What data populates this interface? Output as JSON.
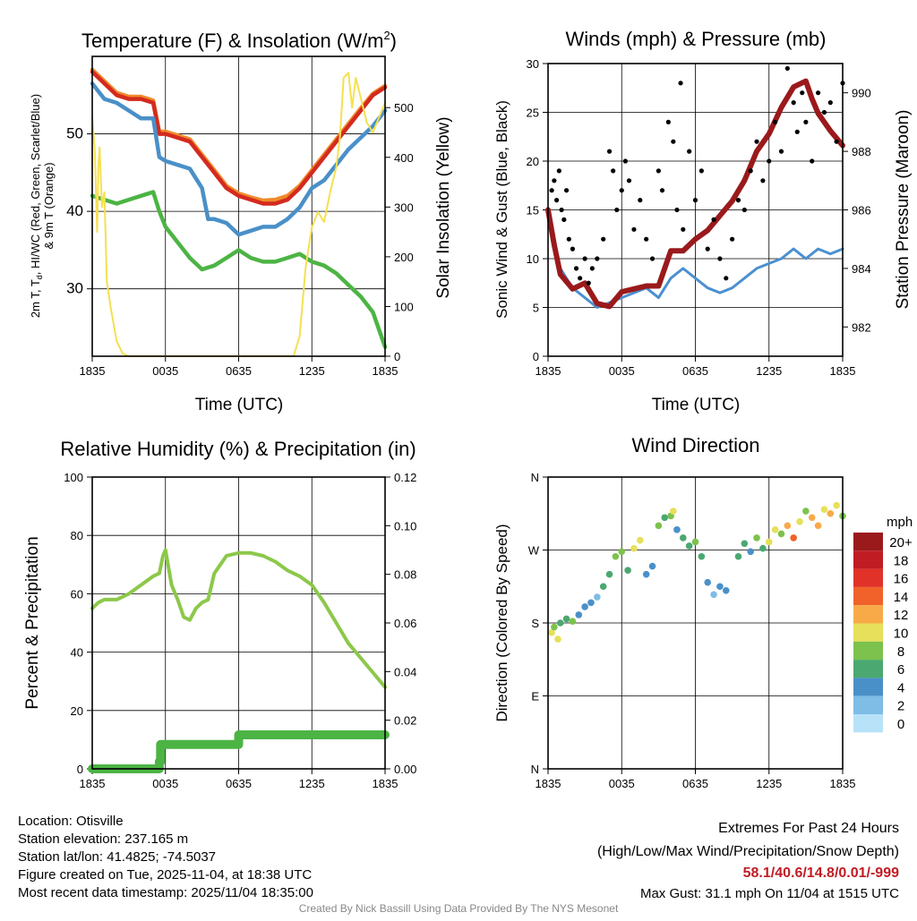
{
  "colors": {
    "temp": "#d42a1f",
    "temp9m": "#f08a2a",
    "windchill": "#4a90c8",
    "dewpoint": "#4cb444",
    "solar": "#f5e050",
    "pressure": "#9a1a1c",
    "wind": "#4a90d0",
    "gust": "#000000",
    "rh": "#8cc84a",
    "precip": "#4cb444"
  },
  "footer": {
    "location": "Location: Otisville",
    "elevation": "Station elevation: 237.165 m",
    "latlon": "Station lat/lon: 41.4825; -74.5037",
    "created": "Figure created on Tue, 2025-11-04, at 18:38 UTC",
    "recent": "Most recent data timestamp: 2025/11/04 18:35:00",
    "extremes_title": "Extremes For Past 24 Hours",
    "extremes_sub": "(High/Low/Max Wind/Precipitation/Snow Depth)",
    "extremes_values": "58.1/40.6/14.8/0.01/-999",
    "max_gust": "Max Gust: 31.1 mph On 11/04 at 1515 UTC",
    "credit": "Created By Nick Bassill Using Data Provided By The NYS Mesonet"
  },
  "chart_data": [
    {
      "id": "temperature",
      "type": "line",
      "title": "Temperature (F) & Insolation (W/m",
      "title_sup": "2",
      "title_end": ")",
      "xlabel": "Time (UTC)",
      "ylabel_a": "2m T, T",
      "ylabel_sub": "d",
      "ylabel_b": ", HI/WC (Red, Green, Scarlet/Blue)",
      "ylabel_line2": "& 9m T (Orange)",
      "y2label": "Solar Insolation (Yellow)",
      "xlim": [
        0,
        24
      ],
      "ylim": [
        21.3,
        60
      ],
      "y2lim": [
        0,
        603
      ],
      "xticks": [
        0,
        6,
        12,
        18,
        24
      ],
      "xtick_labels": [
        "1835",
        "0035",
        "0635",
        "1235",
        "1835"
      ],
      "yticks": [
        30,
        40,
        50
      ],
      "ytick_labels": [
        "30",
        "40",
        "50"
      ],
      "y2ticks": [
        0,
        100,
        200,
        300,
        400,
        500
      ],
      "y2tick_labels": [
        "0",
        "100",
        "200",
        "300",
        "400",
        "500"
      ],
      "grid": true,
      "series": [
        {
          "name": "9m T",
          "color_key": "temp9m",
          "axis": "left",
          "x": [
            0,
            1,
            2,
            3,
            4,
            5,
            5.5,
            6,
            7,
            8,
            9,
            10,
            11,
            12,
            13,
            14,
            15,
            16,
            17,
            18,
            19,
            20,
            21,
            22,
            23,
            24
          ],
          "y": [
            58.3,
            56.8,
            55.3,
            54.8,
            54.8,
            54.3,
            50.3,
            50.3,
            49.8,
            49.3,
            47.3,
            45.3,
            43.3,
            42.3,
            41.8,
            41.4,
            41.5,
            42,
            43.3,
            45.3,
            47.3,
            49.3,
            51.3,
            53.3,
            55.2,
            56.2
          ]
        },
        {
          "name": "2m T",
          "color_key": "temp",
          "axis": "left",
          "x": [
            0,
            1,
            2,
            3,
            4,
            5,
            5.5,
            6,
            7,
            8,
            9,
            10,
            11,
            12,
            13,
            14,
            15,
            16,
            17,
            18,
            19,
            20,
            21,
            22,
            23,
            24
          ],
          "y": [
            58,
            56.5,
            55,
            54.5,
            54.5,
            54,
            50,
            50,
            49.5,
            49,
            47,
            45,
            43,
            42,
            41.5,
            41,
            41,
            41.5,
            43,
            45,
            47,
            49,
            51,
            53,
            55,
            56
          ]
        },
        {
          "name": "HI/WC",
          "color_key": "windchill",
          "axis": "left",
          "x": [
            0,
            1,
            2,
            3,
            4,
            5,
            5.5,
            6,
            7,
            8,
            9,
            9.5,
            10,
            11,
            12,
            13,
            14,
            15,
            16,
            17,
            18,
            19,
            20,
            21,
            22,
            23,
            24
          ],
          "y": [
            56.5,
            54.5,
            54,
            53,
            52,
            52,
            47,
            46.5,
            46,
            45.5,
            43,
            39,
            39,
            38.5,
            37,
            37.5,
            38,
            38,
            39,
            40.5,
            43,
            44,
            46,
            48,
            49.5,
            51,
            53
          ]
        },
        {
          "name": "Dewpoint",
          "color_key": "dewpoint",
          "axis": "left",
          "x": [
            0,
            1,
            2,
            3,
            4,
            5,
            5.5,
            6,
            7,
            8,
            9,
            10,
            11,
            12,
            13,
            14,
            15,
            16,
            17,
            18,
            19,
            20,
            21,
            22,
            23,
            24
          ],
          "y": [
            42,
            41.5,
            41,
            41.5,
            42,
            42.5,
            40,
            38,
            36,
            34,
            32.5,
            33,
            34,
            35,
            34,
            33.5,
            33.5,
            34,
            34.5,
            33.5,
            33,
            32,
            30.5,
            29,
            27,
            22.5
          ]
        },
        {
          "name": "Solar Insolation",
          "color_key": "solar",
          "axis": "right",
          "x": [
            0,
            0.2,
            0.4,
            0.5,
            0.6,
            0.8,
            1,
            1.2,
            1.5,
            2,
            2.5,
            3,
            6,
            12,
            16.5,
            17,
            17.5,
            18,
            18.5,
            19,
            19.5,
            20,
            20.3,
            20.6,
            21,
            21.3,
            21.6,
            22,
            22.5,
            23,
            23.5,
            24
          ],
          "y": [
            480,
            420,
            250,
            380,
            420,
            300,
            330,
            150,
            100,
            30,
            5,
            0,
            0,
            0,
            0,
            40,
            180,
            260,
            290,
            270,
            330,
            380,
            440,
            560,
            570,
            500,
            560,
            520,
            470,
            450,
            480,
            510
          ]
        }
      ]
    },
    {
      "id": "winds",
      "type": "line",
      "title": "Winds (mph) & Pressure (mb)",
      "xlabel": "Time (UTC)",
      "ylabel": "Sonic Wind & Gust (Blue, Black)",
      "y2label": "Station Pressure (Maroon)",
      "xlim": [
        0,
        24
      ],
      "ylim": [
        0,
        30
      ],
      "y2lim": [
        981,
        991
      ],
      "xticks": [
        0,
        6,
        12,
        18,
        24
      ],
      "xtick_labels": [
        "1835",
        "0035",
        "0635",
        "1235",
        "1835"
      ],
      "yticks": [
        0,
        5,
        10,
        15,
        20,
        25,
        30
      ],
      "ytick_labels": [
        "0",
        "5",
        "10",
        "15",
        "20",
        "25",
        "30"
      ],
      "y2ticks": [
        982,
        984,
        986,
        988,
        990
      ],
      "y2tick_labels": [
        "982",
        "984",
        "986",
        "988",
        "990"
      ],
      "grid": true,
      "series": [
        {
          "name": "Sonic Wind",
          "color_key": "wind",
          "axis": "left",
          "x": [
            0,
            0.5,
            1,
            2,
            3,
            4,
            5,
            6,
            7,
            8,
            9,
            10,
            11,
            12,
            13,
            14,
            15,
            16,
            17,
            18,
            19,
            20,
            21,
            22,
            23,
            24
          ],
          "y": [
            15,
            11,
            9,
            7,
            6,
            5,
            5.5,
            6,
            6.5,
            7,
            6,
            8,
            9,
            8,
            7,
            6.5,
            7,
            8,
            9,
            9.5,
            10,
            11,
            10,
            11,
            10.5,
            11
          ]
        },
        {
          "name": "Station Pressure",
          "color_key": "pressure",
          "axis": "right",
          "x": [
            0,
            0.5,
            1,
            2,
            3,
            4,
            5,
            6,
            7,
            8,
            9,
            10,
            11,
            12,
            13,
            14,
            15,
            16,
            17,
            18,
            19,
            20,
            21,
            21.5,
            22,
            23,
            24
          ],
          "y": [
            986,
            984.8,
            983.8,
            983.3,
            983.5,
            982.8,
            982.7,
            983.2,
            983.3,
            983.4,
            983.4,
            984.6,
            984.6,
            985,
            985.3,
            985.8,
            986.3,
            987,
            988,
            988.6,
            989.5,
            990.2,
            990.4,
            989.8,
            989.3,
            988.7,
            988.2
          ]
        },
        {
          "name": "Gust",
          "color_key": "gust",
          "axis": "left",
          "kind": "scatter",
          "x": [
            0.3,
            0.5,
            0.7,
            0.9,
            1.1,
            1.3,
            1.5,
            1.7,
            2,
            2.3,
            2.6,
            3,
            3.3,
            3.6,
            4,
            4.5,
            5,
            5.3,
            5.6,
            6,
            6.3,
            6.6,
            7,
            7.5,
            8,
            8.5,
            9,
            9.3,
            9.8,
            10.2,
            10.5,
            10.8,
            11,
            11.5,
            12,
            12.5,
            13,
            13.5,
            14,
            14.5,
            15,
            15.5,
            16,
            16.5,
            17,
            17.5,
            18,
            18.5,
            19,
            19.5,
            20,
            20.3,
            20.7,
            21,
            21.5,
            22,
            22.5,
            23,
            23.5,
            24
          ],
          "y": [
            17,
            18,
            16,
            19,
            15,
            14,
            17,
            12,
            11,
            9,
            8,
            10,
            7.5,
            9,
            10,
            12,
            21,
            19,
            15,
            17,
            20,
            18,
            13,
            16,
            12,
            10,
            19,
            17,
            24,
            22,
            15,
            28,
            13,
            21,
            16,
            19,
            11,
            14,
            10,
            8,
            12,
            16,
            15,
            19,
            22,
            18,
            20,
            24,
            21,
            29.5,
            26,
            23,
            27,
            24,
            20,
            27,
            25,
            26,
            22,
            28
          ]
        }
      ]
    },
    {
      "id": "humidity",
      "type": "line",
      "title": "Relative Humidity (%) & Precipitation (in)",
      "xlabel": "",
      "ylabel": "Percent & Precipitation",
      "xlim": [
        0,
        24
      ],
      "ylim": [
        0,
        100
      ],
      "y2lim": [
        0,
        0.12
      ],
      "xticks": [
        0,
        6,
        12,
        18,
        24
      ],
      "xtick_labels": [
        "1835",
        "0035",
        "0635",
        "1235",
        "1835"
      ],
      "yticks": [
        0,
        20,
        40,
        60,
        80,
        100
      ],
      "ytick_labels": [
        "0",
        "20",
        "40",
        "60",
        "80",
        "100"
      ],
      "y2ticks": [
        0,
        0.02,
        0.04,
        0.06,
        0.08,
        0.1,
        0.12
      ],
      "y2tick_labels": [
        "0.00",
        "0.02",
        "0.04",
        "0.06",
        "0.08",
        "0.10",
        "0.12"
      ],
      "grid": true,
      "series": [
        {
          "name": "Relative Humidity",
          "color_key": "rh",
          "axis": "left",
          "x": [
            0,
            0.5,
            1,
            2,
            3,
            4,
            5,
            5.5,
            5.8,
            6,
            6.5,
            7,
            7.5,
            8,
            8.5,
            9,
            9.5,
            10,
            11,
            12,
            13,
            14,
            15,
            16,
            17,
            18,
            19,
            20,
            21,
            22,
            23,
            24
          ],
          "y": [
            55,
            57,
            58,
            58,
            60,
            63,
            66,
            67,
            73,
            75,
            63,
            58,
            52,
            51,
            55,
            57,
            58,
            67,
            73,
            74,
            74,
            73,
            71,
            68,
            66,
            63,
            57,
            50,
            43,
            38,
            33,
            28
          ]
        },
        {
          "name": "Precipitation",
          "color_key": "precip",
          "axis": "right",
          "x": [
            0,
            5.5,
            5.5,
            5.6,
            5.6,
            12,
            12,
            24
          ],
          "y": [
            0,
            0,
            0.003,
            0.003,
            0.01,
            0.01,
            0.014,
            0.014
          ]
        }
      ]
    },
    {
      "id": "wind_direction",
      "type": "scatter",
      "title": "Wind Direction",
      "ylabel": "Direction (Colored By Speed)",
      "xlim": [
        0,
        24
      ],
      "ylim": [
        0,
        360
      ],
      "xticks": [
        0,
        6,
        12,
        18,
        24
      ],
      "xtick_labels": [
        "1835",
        "0035",
        "0635",
        "1235",
        "1835"
      ],
      "yticks": [
        0,
        90,
        180,
        270,
        360
      ],
      "ytick_labels": [
        "N",
        "E",
        "S",
        "W",
        "N"
      ],
      "grid": true,
      "legend": {
        "title": "mph",
        "placement": "right",
        "levels": [
          "20+",
          "18",
          "16",
          "14",
          "12",
          "10",
          "8",
          "6",
          "4",
          "2",
          "0"
        ],
        "colors": [
          "#9a1a1c",
          "#c01c24",
          "#e03228",
          "#f0622a",
          "#f8aa48",
          "#e6e05a",
          "#7cc24c",
          "#4aa870",
          "#4a90c8",
          "#7fbce6",
          "#b8e2f8"
        ]
      },
      "points": {
        "x": [
          0.3,
          0.5,
          0.8,
          1,
          1.5,
          2,
          2.5,
          3,
          3.5,
          4,
          4.5,
          5,
          5.5,
          6,
          6.5,
          7,
          7.5,
          8,
          8.5,
          9,
          9.5,
          10,
          10.2,
          10.5,
          11,
          11.5,
          12,
          12.5,
          13,
          13.5,
          14,
          14.5,
          15.5,
          16,
          16.5,
          17,
          17.5,
          18,
          18.5,
          19,
          19.5,
          20,
          20.5,
          21,
          21.5,
          22,
          22.5,
          23,
          23.5,
          24
        ],
        "direction": [
          168,
          175,
          160,
          180,
          185,
          182,
          190,
          200,
          205,
          212,
          225,
          240,
          262,
          268,
          245,
          272,
          282,
          240,
          250,
          300,
          310,
          312,
          318,
          295,
          285,
          275,
          280,
          262,
          230,
          215,
          225,
          220,
          262,
          278,
          268,
          285,
          272,
          280,
          295,
          290,
          300,
          285,
          305,
          318,
          310,
          300,
          320,
          315,
          325,
          312
        ],
        "speed": [
          10,
          8,
          11,
          7,
          6,
          8,
          5,
          4,
          4,
          3,
          7,
          6,
          8,
          9,
          7,
          10,
          11,
          5,
          4,
          8,
          6,
          9,
          10,
          5,
          6,
          7,
          8,
          6,
          4,
          3,
          4,
          5,
          6,
          7,
          5,
          8,
          6,
          10,
          11,
          9,
          12,
          14,
          10,
          9,
          12,
          13,
          11,
          12,
          10,
          9
        ]
      }
    }
  ]
}
